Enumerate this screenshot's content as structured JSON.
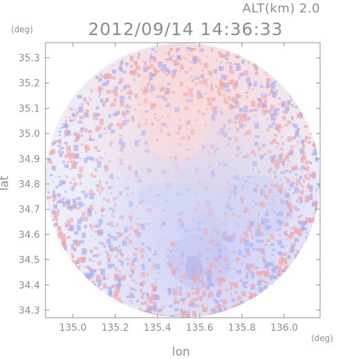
{
  "header": {
    "altitude_label": "ALT(km)  2.0",
    "timestamp": "2012/09/14 14:36:33"
  },
  "units": {
    "y_unit": "(deg)",
    "x_unit": "(deg)"
  },
  "chart_data": {
    "type": "heatmap",
    "xlabel": "lon",
    "ylabel": "lat",
    "xlim": [
      134.87,
      136.17
    ],
    "ylim": [
      34.27,
      35.36
    ],
    "x_ticks": [
      "135.0",
      "135.2",
      "135.4",
      "135.6",
      "135.8",
      "136.0"
    ],
    "y_ticks": [
      "34.3",
      "34.4",
      "34.5",
      "34.6",
      "34.7",
      "34.8",
      "34.9",
      "35.0",
      "35.1",
      "35.2",
      "35.3"
    ],
    "radar_center": {
      "lon": 135.52,
      "lat": 34.81
    },
    "colors": {
      "positive": "#f4a6a6",
      "negative": "#a9aef2",
      "frame": "#8c8c8c"
    }
  }
}
